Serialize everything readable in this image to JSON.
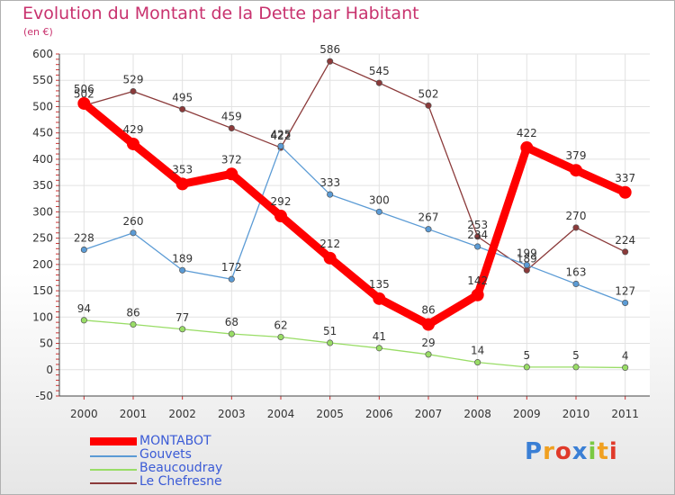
{
  "title": "Evolution du Montant de la Dette par Habitant",
  "unit": "(en €)",
  "logo": "Proxiti",
  "chart_data": {
    "type": "line",
    "title": "Evolution du Montant de la Dette par Habitant",
    "ylabel": "(en €)",
    "x": [
      "2000",
      "2001",
      "2002",
      "2003",
      "2004",
      "2005",
      "2006",
      "2007",
      "2008",
      "2009",
      "2010",
      "2011"
    ],
    "ylim": [
      -50,
      600
    ],
    "yticks": [
      -50,
      0,
      50,
      100,
      150,
      200,
      250,
      300,
      350,
      400,
      450,
      500,
      550,
      600
    ],
    "grid": true,
    "legend_position": "bottom-left",
    "series": [
      {
        "name": "MONTABOT",
        "color": "#ff0000",
        "values": [
          506,
          429,
          353,
          372,
          292,
          212,
          135,
          86,
          142,
          422,
          379,
          337
        ]
      },
      {
        "name": "Gouvets",
        "color": "#5b9bd5",
        "values": [
          228,
          260,
          189,
          172,
          425,
          333,
          300,
          267,
          234,
          199,
          163,
          127
        ]
      },
      {
        "name": "Beaucoudray",
        "color": "#99dd66",
        "values": [
          94,
          86,
          77,
          68,
          62,
          51,
          41,
          29,
          14,
          5,
          5,
          4
        ]
      },
      {
        "name": "Le Chefresne",
        "color": "#8b3a3a",
        "values": [
          502,
          529,
          495,
          459,
          422,
          586,
          545,
          502,
          253,
          189,
          270,
          224
        ]
      }
    ]
  }
}
